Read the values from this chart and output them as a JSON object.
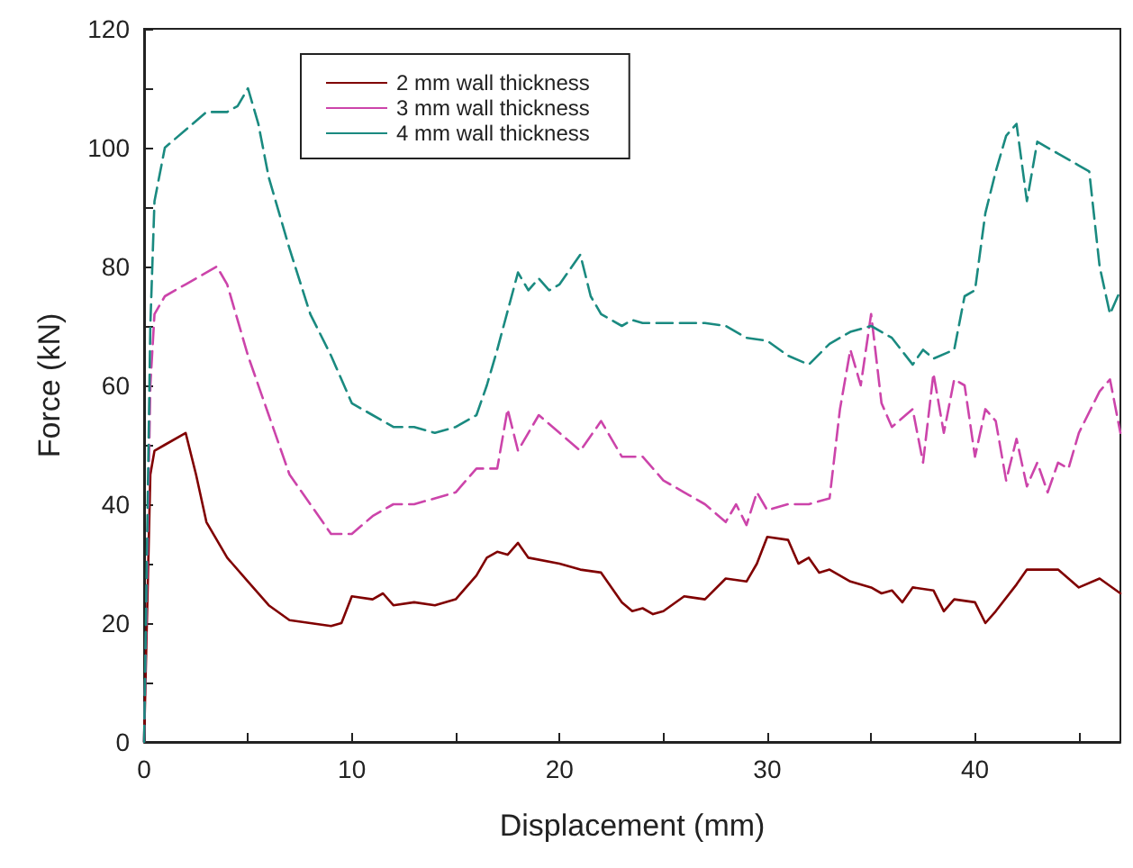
{
  "chart_data": {
    "type": "line",
    "xlabel": "Displacement (mm)",
    "ylabel": "Force (kN)",
    "xlim": [
      0,
      47
    ],
    "ylim": [
      0,
      120
    ],
    "xticks": [
      0,
      {
        "value": 5,
        "label": null
      },
      10,
      {
        "value": 15,
        "label": null
      },
      20,
      {
        "value": 25,
        "label": null
      },
      30,
      {
        "value": 35,
        "label": null
      },
      40,
      {
        "value": 45,
        "label": null
      }
    ],
    "yticks": [
      0,
      {
        "value": 10,
        "label": null
      },
      20,
      {
        "value": 30,
        "label": null
      },
      40,
      {
        "value": 50,
        "label": null
      },
      60,
      {
        "value": 70,
        "label": null
      },
      80,
      {
        "value": 90,
        "label": null
      },
      100,
      {
        "value": 110,
        "label": null
      },
      120
    ],
    "grid": false,
    "legend": "top left",
    "marker": "none",
    "series": [
      {
        "name": "2 mm wall thickness",
        "color": "#800000",
        "line_style": "solid",
        "x": [
          0,
          0.3,
          0.5,
          1,
          2,
          2.5,
          3,
          4,
          5,
          6,
          7,
          8,
          9,
          9.5,
          10,
          11,
          11.5,
          12,
          13,
          14,
          15,
          16,
          16.5,
          17,
          17.5,
          18,
          18.5,
          20,
          21,
          22,
          22.5,
          23,
          23.5,
          24,
          24.5,
          25,
          26,
          27,
          28,
          29,
          29.5,
          30,
          31,
          31.5,
          32,
          32.5,
          33,
          34,
          35,
          35.5,
          36,
          36.5,
          37,
          38,
          38.5,
          39,
          40,
          40.5,
          41,
          42,
          42.5,
          44,
          45,
          46,
          47
        ],
        "values": [
          0,
          45,
          49,
          50,
          52,
          45,
          37,
          31,
          27,
          23,
          20.5,
          20,
          19.5,
          20,
          24.5,
          24,
          25,
          23,
          23.5,
          23,
          24,
          28,
          31,
          32,
          31.5,
          33.5,
          31,
          30,
          29,
          28.5,
          26,
          23.5,
          22,
          22.5,
          21.5,
          22,
          24.5,
          24,
          27.5,
          27,
          30,
          34.5,
          34,
          30,
          31,
          28.5,
          29,
          27,
          26,
          25,
          25.5,
          23.5,
          26,
          25.5,
          22,
          24,
          23.5,
          20,
          22,
          26.5,
          29,
          29,
          26,
          27.5,
          25
        ]
      },
      {
        "name": "3 mm wall thickness",
        "color": "#cc44aa",
        "line_style": "dashed",
        "x": [
          0,
          0.3,
          0.5,
          1,
          2,
          3,
          3.5,
          4,
          5,
          6,
          7,
          8,
          9,
          10,
          11,
          12,
          13,
          14,
          15,
          16,
          17,
          17.5,
          18,
          19,
          20,
          21,
          22,
          23,
          24,
          25,
          26,
          27,
          28,
          28.5,
          29,
          29.5,
          30,
          31,
          32,
          33,
          33.5,
          34,
          34.5,
          35,
          35.5,
          36,
          37,
          37.5,
          38,
          38.5,
          39,
          39.5,
          40,
          40.5,
          41,
          41.5,
          42,
          42.5,
          43,
          43.5,
          44,
          44.5,
          45,
          46,
          46.5,
          47
        ],
        "values": [
          0,
          60,
          72,
          75,
          77,
          79,
          80,
          77,
          65,
          55,
          45,
          40,
          35,
          35,
          38,
          40,
          40,
          41,
          42,
          46,
          46,
          56,
          49,
          55,
          52,
          49,
          54,
          48,
          48,
          44,
          42,
          40,
          37,
          40,
          36.5,
          42,
          39,
          40,
          40,
          41,
          56,
          66,
          60,
          72,
          57,
          53,
          56,
          47,
          62,
          52,
          61,
          60,
          48,
          56,
          54,
          44,
          51,
          43,
          47,
          42,
          47,
          46,
          52,
          59,
          61,
          52
        ]
      },
      {
        "name": "4 mm wall thickness",
        "color": "#1a8a80",
        "line_style": "dashed",
        "x": [
          0,
          0.3,
          0.5,
          1,
          2,
          3,
          4,
          4.5,
          5,
          5.5,
          6,
          7,
          8,
          9,
          10,
          11,
          12,
          13,
          14,
          15,
          16,
          16.5,
          17,
          18,
          18.5,
          19,
          19.5,
          20,
          21,
          21.5,
          22,
          23,
          23.5,
          24,
          25,
          27,
          28,
          29,
          30,
          31,
          32,
          33,
          34,
          35,
          36,
          37,
          37.5,
          38,
          39,
          39.5,
          40,
          40.5,
          41,
          41.5,
          42,
          42.5,
          43,
          44,
          45,
          45.5,
          46,
          46.5,
          47
        ],
        "values": [
          0,
          70,
          91,
          100,
          103,
          106,
          106,
          107,
          110,
          104,
          95,
          83,
          72,
          65,
          57,
          55,
          53,
          53,
          52,
          53,
          55,
          60,
          66,
          79,
          76,
          78,
          76,
          77,
          82,
          75,
          72,
          70,
          71,
          70.5,
          70.5,
          70.5,
          70,
          68,
          67.5,
          65,
          63.5,
          67,
          69,
          70,
          68,
          63.5,
          66,
          64.5,
          66,
          75,
          76,
          89,
          96,
          102,
          104,
          91,
          101,
          99,
          97,
          96,
          80,
          72,
          76
        ]
      }
    ]
  }
}
